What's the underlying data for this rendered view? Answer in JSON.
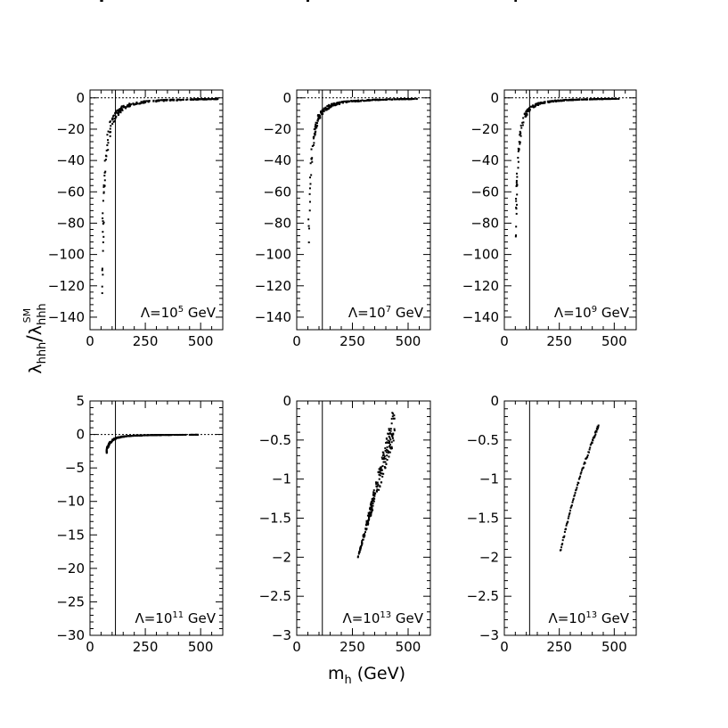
{
  "figure": {
    "xlabel_main": "m",
    "xlabel_sub": "h",
    "xlabel_unit": "(GeV)",
    "ylabel_num": "λ",
    "ylabel_num_sub": "hhh",
    "ylabel_slash": "/",
    "ylabel_den": "λ",
    "ylabel_den_sub": "hhh",
    "ylabel_den_sup": "SM"
  },
  "chart_data": [
    {
      "type": "scatter",
      "annotation": {
        "prefix": "Λ=10",
        "exp": "5",
        "suffix": " GeV"
      },
      "xlim": [
        0,
        600
      ],
      "ylim": [
        -148,
        5
      ],
      "xticks": [
        0,
        250,
        500
      ],
      "xtick_labels": [
        "0",
        "250",
        "500"
      ],
      "yticks": [
        0,
        -20,
        -40,
        -60,
        -80,
        -100,
        -120,
        -140
      ],
      "ytick_labels": [
        "0",
        "−20",
        "−40",
        "−60",
        "−80",
        "−100",
        "−120",
        "−140"
      ],
      "vline_x": 115,
      "hline_y": 0,
      "band": {
        "a": 1.35,
        "b": 108,
        "m0": 55,
        "k": 11.5,
        "xmin": 50,
        "xmax": 580,
        "spread": 0.5
      }
    },
    {
      "type": "scatter",
      "annotation": {
        "prefix": "Λ=10",
        "exp": "7",
        "suffix": " GeV"
      },
      "xlim": [
        0,
        600
      ],
      "ylim": [
        -148,
        5
      ],
      "xticks": [
        0,
        250,
        500
      ],
      "xtick_labels": [
        "0",
        "250",
        "500"
      ],
      "yticks": [
        0,
        -20,
        -40,
        -60,
        -80,
        -100,
        -120,
        -140
      ],
      "ytick_labels": [
        "0",
        "−20",
        "−40",
        "−60",
        "−80",
        "−100",
        "−120",
        "−140"
      ],
      "vline_x": 115,
      "hline_y": 0,
      "band": {
        "a": 1.25,
        "b": 92,
        "m0": 52,
        "k": 11.5,
        "xmin": 48,
        "xmax": 550,
        "spread": 0.4
      }
    },
    {
      "type": "scatter",
      "annotation": {
        "prefix": "Λ=10",
        "exp": "9",
        "suffix": " GeV"
      },
      "xlim": [
        0,
        600
      ],
      "ylim": [
        -148,
        5
      ],
      "xticks": [
        0,
        250,
        500
      ],
      "xtick_labels": [
        "0",
        "250",
        "500"
      ],
      "yticks": [
        0,
        -20,
        -40,
        -60,
        -80,
        -100,
        -120,
        -140
      ],
      "ytick_labels": [
        "0",
        "−20",
        "−40",
        "−60",
        "−80",
        "−100",
        "−120",
        "−140"
      ],
      "vline_x": 115,
      "hline_y": 0,
      "band": {
        "a": 1.2,
        "b": 78,
        "m0": 52,
        "k": 11,
        "xmin": 50,
        "xmax": 520,
        "spread": 0.35
      }
    },
    {
      "type": "scatter",
      "annotation": {
        "prefix": "Λ=10",
        "exp": "11",
        "suffix": " GeV"
      },
      "xlim": [
        0,
        600
      ],
      "ylim": [
        -30,
        5
      ],
      "xticks": [
        0,
        250,
        500
      ],
      "xtick_labels": [
        "0",
        "250",
        "500"
      ],
      "yticks": [
        5,
        0,
        -5,
        -10,
        -15,
        -20,
        -25,
        -30
      ],
      "ytick_labels": [
        "5",
        "0",
        "−5",
        "−10",
        "−15",
        "−20",
        "−25",
        "−30"
      ],
      "vline_x": 115,
      "hline_y": 0,
      "band": {
        "a": 0.6,
        "b": 4.5,
        "m0": 65,
        "k": 12,
        "xmin": 75,
        "xmax": 500,
        "spread": 0.3
      }
    },
    {
      "type": "scatter",
      "annotation": {
        "prefix": "Λ=10",
        "exp": "13",
        "suffix": " GeV"
      },
      "xlim": [
        0,
        600
      ],
      "ylim": [
        -3,
        0
      ],
      "xticks": [
        0,
        250,
        500
      ],
      "xtick_labels": [
        "0",
        "250",
        "500"
      ],
      "yticks": [
        0,
        -0.5,
        -1,
        -1.5,
        -2,
        -2.5,
        -3
      ],
      "ytick_labels": [
        "0",
        "−0.5",
        "−1",
        "−1.5",
        "−2",
        "−2.5",
        "−3"
      ],
      "vline_x": 115,
      "hline_y": null,
      "wedge": {
        "x0": 275,
        "y0": -2.0,
        "x1": 440,
        "y1top": -0.02,
        "y1bot": -0.5
      }
    },
    {
      "type": "scatter",
      "annotation": {
        "prefix": "Λ=10",
        "exp": "13",
        "suffix": " GeV"
      },
      "xlim": [
        0,
        600
      ],
      "ylim": [
        -3,
        0
      ],
      "xticks": [
        0,
        250,
        500
      ],
      "xtick_labels": [
        "0",
        "250",
        "500"
      ],
      "yticks": [
        0,
        -0.5,
        -1,
        -1.5,
        -2,
        -2.5,
        -3
      ],
      "ytick_labels": [
        "0",
        "−0.5",
        "−1",
        "−1.5",
        "−2",
        "−2.5",
        "−3"
      ],
      "vline_x": 115,
      "hline_y": null,
      "line": [
        [
          255,
          -1.92
        ],
        [
          300,
          -1.4
        ],
        [
          350,
          -0.92
        ],
        [
          400,
          -0.52
        ],
        [
          430,
          -0.3
        ]
      ]
    }
  ]
}
